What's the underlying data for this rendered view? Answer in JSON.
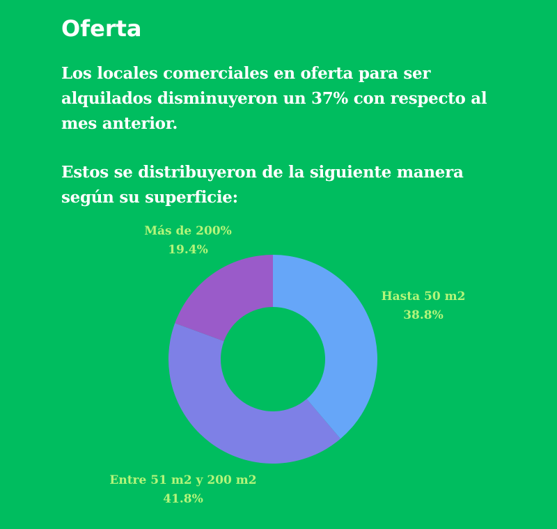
{
  "header": {
    "title": "Oferta"
  },
  "text": {
    "paragraph1": "Los locales comerciales en oferta para ser alquilados disminuyeron un 37% con respecto al mes anterior.",
    "paragraph2": "Estos se distribuyeron de la siguiente manera según su superficie:"
  },
  "chart_data": {
    "type": "pie",
    "subtype": "donut",
    "categories": [
      "Hasta 50 m2",
      "Entre 51 m2 y 200 m2",
      "Más de 200%"
    ],
    "values": [
      38.8,
      41.8,
      19.4
    ],
    "labels": [
      "38.8%",
      "41.8%",
      "19.4%"
    ],
    "colors": [
      "#66A6F8",
      "#7E80E6",
      "#9A5BC9"
    ],
    "label_color": "#B4F57A",
    "background": "#00BD5F"
  }
}
